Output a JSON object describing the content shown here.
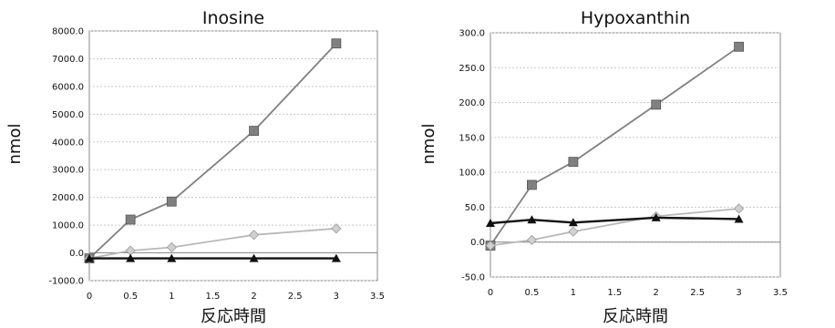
{
  "chart_data": [
    {
      "type": "line",
      "title": "Inosine",
      "xlabel": "反応時間",
      "ylabel": "nmol",
      "xlim": [
        0,
        3.5
      ],
      "ylim": [
        -1000,
        8000
      ],
      "x_ticks": [
        "0",
        "0.5",
        "1",
        "1.5",
        "2",
        "2.5",
        "3",
        "3.5"
      ],
      "y_ticks": [
        "-1000.0",
        "0.0",
        "1000.0",
        "2000.0",
        "3000.0",
        "4000.0",
        "5000.0",
        "6000.0",
        "7000.0",
        "8000.0"
      ],
      "grid": true,
      "series": [
        {
          "color": "#808080",
          "marker": "square",
          "points": [
            [
              0,
              -200
            ],
            [
              0.5,
              1200
            ],
            [
              1,
              1850
            ],
            [
              2,
              4400
            ],
            [
              3,
              7550
            ]
          ]
        },
        {
          "color": "#b8b8b8",
          "marker": "diamond",
          "points": [
            [
              0,
              -200
            ],
            [
              0.5,
              80
            ],
            [
              1,
              200
            ],
            [
              2,
              650
            ],
            [
              3,
              880
            ]
          ]
        },
        {
          "color": "#111111",
          "marker": "triangle",
          "points": [
            [
              0,
              -200
            ],
            [
              0.5,
              -200
            ],
            [
              1,
              -200
            ],
            [
              2,
              -200
            ],
            [
              3,
              -200
            ]
          ]
        }
      ]
    },
    {
      "type": "line",
      "title": "Hypoxanthin",
      "xlabel": "反応時間",
      "ylabel": "nmol",
      "xlim": [
        0,
        3.5
      ],
      "ylim": [
        -50,
        300
      ],
      "x_ticks": [
        "0",
        "0.5",
        "1",
        "1.5",
        "2",
        "2.5",
        "3",
        "3.5"
      ],
      "y_ticks": [
        "-50.0",
        "0.0",
        "50.0",
        "100.0",
        "150.0",
        "200.0",
        "250.0",
        "300.0"
      ],
      "grid": true,
      "series": [
        {
          "color": "#808080",
          "marker": "square",
          "points": [
            [
              0,
              -5
            ],
            [
              0.5,
              82
            ],
            [
              1,
              115
            ],
            [
              2,
              197
            ],
            [
              3,
              280
            ]
          ]
        },
        {
          "color": "#b8b8b8",
          "marker": "diamond",
          "points": [
            [
              0,
              -5
            ],
            [
              0.5,
              3
            ],
            [
              1,
              15
            ],
            [
              2,
              37
            ],
            [
              3,
              48
            ]
          ]
        },
        {
          "color": "#111111",
          "marker": "triangle",
          "points": [
            [
              0,
              27
            ],
            [
              0.5,
              32
            ],
            [
              1,
              28
            ],
            [
              2,
              35
            ],
            [
              3,
              33
            ]
          ]
        }
      ]
    }
  ]
}
